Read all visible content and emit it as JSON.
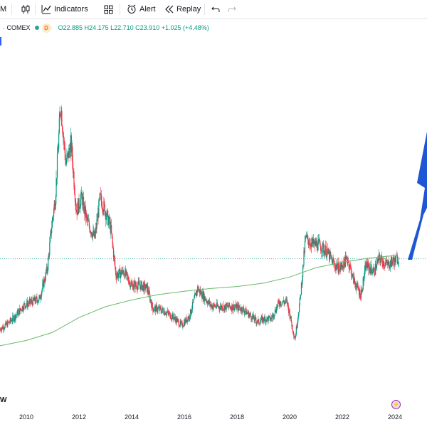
{
  "toolbar": {
    "interval_label": "M",
    "indicators_label": "Indicators",
    "alert_label": "Alert",
    "replay_label": "Replay",
    "icons": [
      "candles-icon",
      "indicators-icon",
      "layout-icon",
      "alert-icon",
      "replay-icon",
      "undo-icon",
      "redo-icon"
    ]
  },
  "legend": {
    "symbol_suffix": "· COMEX",
    "interval_badge": "D",
    "open": "O22.885",
    "high": "H24.175",
    "low": "L22.710",
    "close": "C23.910",
    "change": "+1.025 (+4.48%)"
  },
  "bottom": {
    "logo_mark": "W",
    "event_icon": "lightning-icon"
  },
  "colors": {
    "up": "#089981",
    "down": "#f23645",
    "ma": "#66bb6a",
    "last_price_line": "#26a69a",
    "arrow": "#1e56d4"
  },
  "chart_data": {
    "type": "candlestick",
    "title": "",
    "x_ticks": [
      "2010",
      "2012",
      "2014",
      "2016",
      "2018",
      "2020",
      "2022",
      "2024"
    ],
    "x_range_years": [
      2009.0,
      2025.0
    ],
    "series": [
      {
        "kind": "close",
        "points": [
          [
            2009.0,
            13.5
          ],
          [
            2009.3,
            14.3
          ],
          [
            2009.6,
            15.5
          ],
          [
            2009.9,
            17.0
          ],
          [
            2010.2,
            17.5
          ],
          [
            2010.5,
            18.0
          ],
          [
            2010.8,
            22.5
          ],
          [
            2010.95,
            28.5
          ],
          [
            2011.1,
            33.0
          ],
          [
            2011.3,
            47.0
          ],
          [
            2011.5,
            38.0
          ],
          [
            2011.7,
            41.0
          ],
          [
            2011.9,
            31.0
          ],
          [
            2012.1,
            33.0
          ],
          [
            2012.3,
            29.5
          ],
          [
            2012.6,
            27.0
          ],
          [
            2012.8,
            33.0
          ],
          [
            2013.0,
            31.0
          ],
          [
            2013.2,
            28.5
          ],
          [
            2013.4,
            21.5
          ],
          [
            2013.7,
            22.0
          ],
          [
            2014.0,
            20.0
          ],
          [
            2014.3,
            20.0
          ],
          [
            2014.6,
            19.5
          ],
          [
            2014.8,
            16.5
          ],
          [
            2015.0,
            16.5
          ],
          [
            2015.3,
            16.0
          ],
          [
            2015.6,
            15.2
          ],
          [
            2015.9,
            14.0
          ],
          [
            2016.2,
            15.5
          ],
          [
            2016.5,
            19.5
          ],
          [
            2016.7,
            18.5
          ],
          [
            2017.0,
            17.0
          ],
          [
            2017.3,
            16.8
          ],
          [
            2017.6,
            16.8
          ],
          [
            2017.9,
            16.8
          ],
          [
            2018.2,
            16.5
          ],
          [
            2018.5,
            15.5
          ],
          [
            2018.8,
            14.5
          ],
          [
            2019.0,
            15.0
          ],
          [
            2019.3,
            15.0
          ],
          [
            2019.6,
            17.5
          ],
          [
            2019.9,
            17.5
          ],
          [
            2020.2,
            12.0
          ],
          [
            2020.4,
            18.0
          ],
          [
            2020.6,
            27.0
          ],
          [
            2020.9,
            26.0
          ],
          [
            2021.1,
            26.0
          ],
          [
            2021.4,
            25.0
          ],
          [
            2021.7,
            23.0
          ],
          [
            2021.9,
            22.5
          ],
          [
            2022.2,
            24.0
          ],
          [
            2022.4,
            21.0
          ],
          [
            2022.7,
            18.5
          ],
          [
            2022.9,
            23.0
          ],
          [
            2023.2,
            22.0
          ],
          [
            2023.4,
            24.0
          ],
          [
            2023.7,
            23.0
          ],
          [
            2023.9,
            23.5
          ],
          [
            2024.1,
            23.9
          ]
        ]
      },
      {
        "kind": "moving_average",
        "points": [
          [
            2009.0,
            11.0
          ],
          [
            2010.0,
            11.8
          ],
          [
            2011.0,
            13.0
          ],
          [
            2012.0,
            15.2
          ],
          [
            2013.0,
            16.8
          ],
          [
            2014.0,
            17.8
          ],
          [
            2015.0,
            18.6
          ],
          [
            2016.0,
            19.1
          ],
          [
            2017.0,
            19.5
          ],
          [
            2018.0,
            19.8
          ],
          [
            2019.0,
            20.3
          ],
          [
            2020.0,
            21.2
          ],
          [
            2021.0,
            22.6
          ],
          [
            2022.0,
            23.4
          ],
          [
            2023.0,
            24.0
          ],
          [
            2024.0,
            24.4
          ]
        ]
      }
    ],
    "last_price": 23.91
  }
}
